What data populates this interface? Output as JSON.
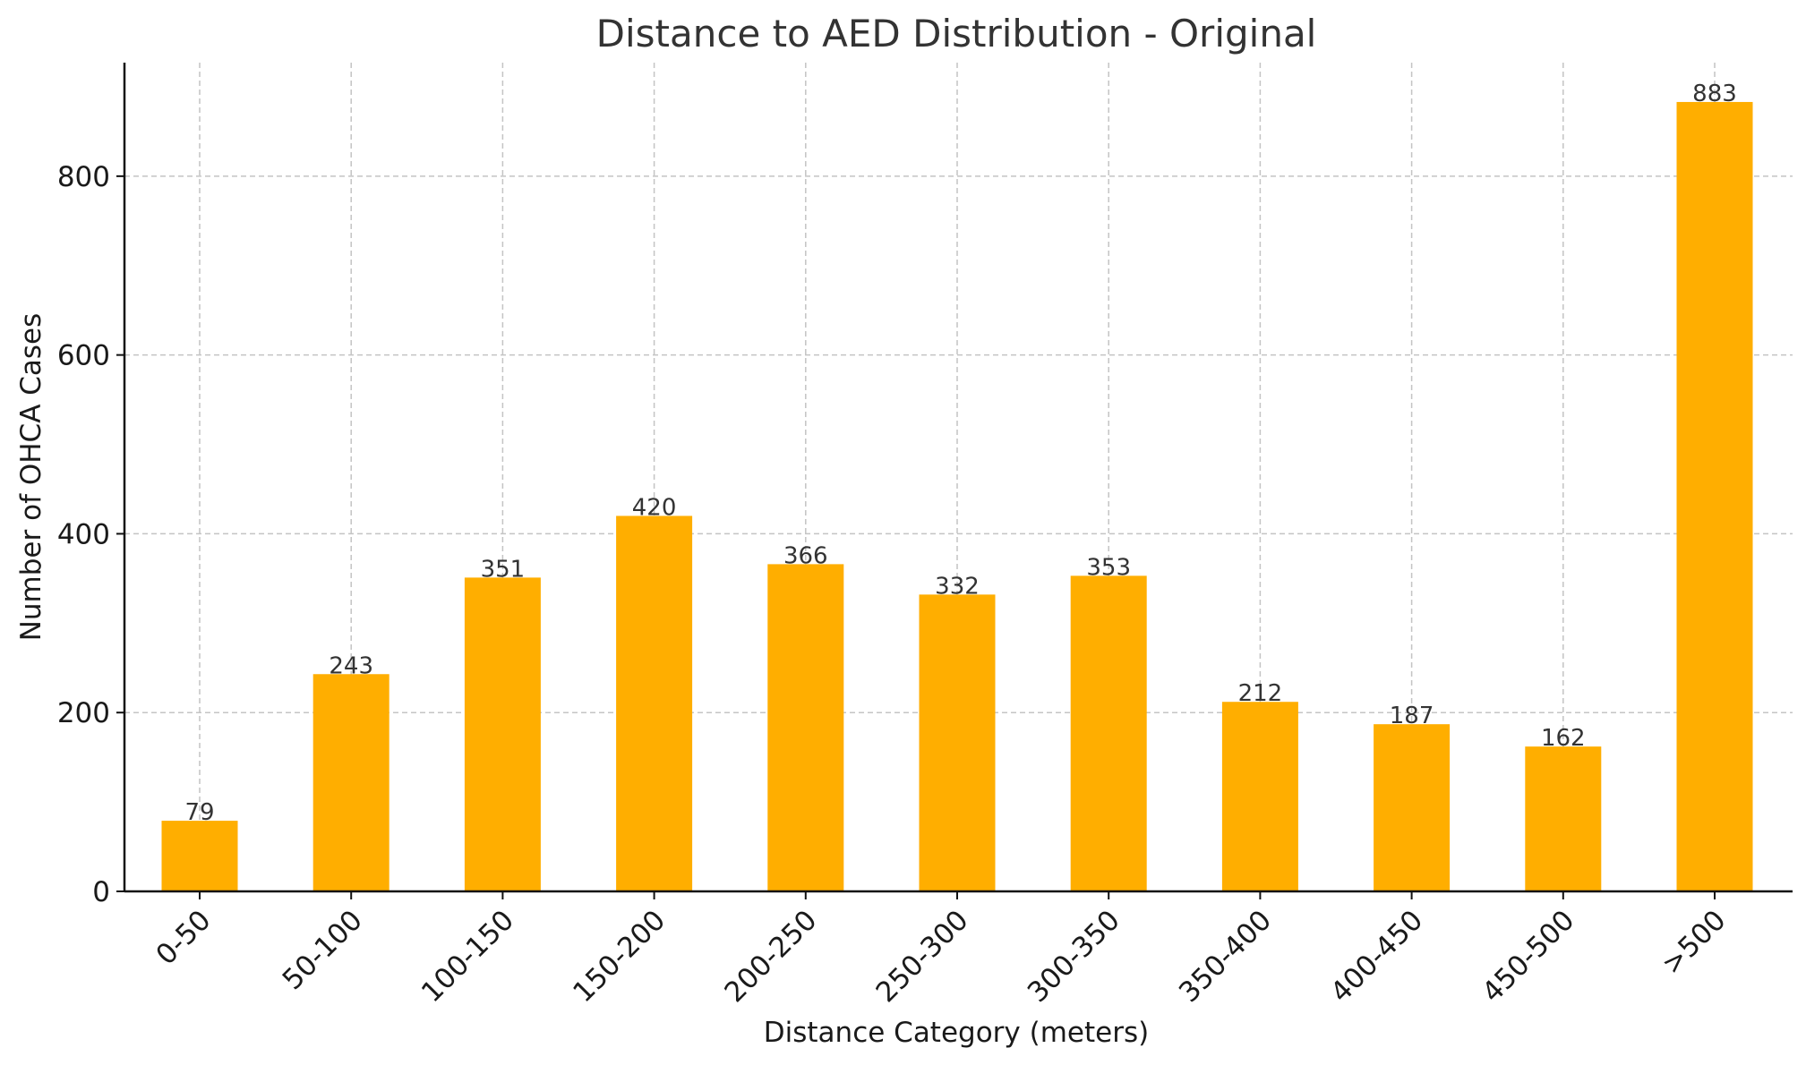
{
  "chart_data": {
    "type": "bar",
    "title": "Distance to AED Distribution - Original",
    "xlabel": "Distance Category (meters)",
    "ylabel": "Number of OHCA Cases",
    "categories": [
      "0-50",
      "50-100",
      "100-150",
      "150-200",
      "200-250",
      "250-300",
      "300-350",
      "350-400",
      "400-450",
      "450-500",
      ">500"
    ],
    "values": [
      79,
      243,
      351,
      420,
      366,
      332,
      353,
      212,
      187,
      162,
      883
    ],
    "ylim": [
      0,
      927
    ],
    "yticks": [
      0,
      200,
      400,
      600,
      800
    ],
    "bar_color": "#FFAE00",
    "grid": true,
    "data_labels": true
  }
}
